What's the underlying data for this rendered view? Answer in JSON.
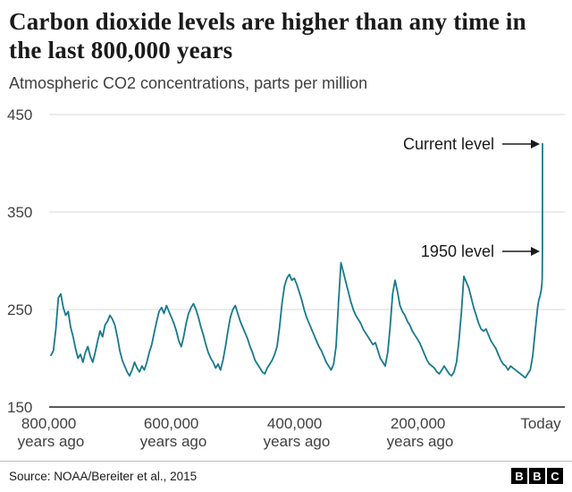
{
  "header": {
    "title": "Carbon dioxide levels are higher than any time in the last 800,000 years",
    "subtitle": "Atmospheric CO2 concentrations, parts per million"
  },
  "chart_data": {
    "type": "line",
    "title": "Carbon dioxide levels are higher than any time in the last 800,000 years",
    "xlabel": "years ago",
    "ylabel": "Atmospheric CO2 concentrations, parts per million",
    "ylim": [
      150,
      450
    ],
    "xlim_years_ago": [
      800000,
      0
    ],
    "grid": "horizontal",
    "legend_position": "none",
    "yticks": [
      450,
      350,
      250,
      150
    ],
    "xticks": [
      {
        "line1": "800,000",
        "line2": "years ago"
      },
      {
        "line1": "600,000",
        "line2": "years ago"
      },
      {
        "line1": "400,000",
        "line2": "years ago"
      },
      {
        "line1": "200,000",
        "line2": "years ago"
      },
      {
        "line1": "Today",
        "line2": ""
      }
    ],
    "annotations": [
      {
        "label": "Current level",
        "value_ppm": 420
      },
      {
        "label": "1950 level",
        "value_ppm": 310
      }
    ],
    "series": [
      {
        "name": "Atmospheric CO2 (ppm)",
        "color": "#17798C",
        "x_unit": "thousand years ago",
        "points": [
          [
            800,
            203
          ],
          [
            796,
            208
          ],
          [
            792,
            230
          ],
          [
            788,
            262
          ],
          [
            784,
            266
          ],
          [
            780,
            252
          ],
          [
            776,
            244
          ],
          [
            772,
            248
          ],
          [
            768,
            232
          ],
          [
            764,
            222
          ],
          [
            760,
            210
          ],
          [
            756,
            200
          ],
          [
            752,
            204
          ],
          [
            748,
            196
          ],
          [
            744,
            206
          ],
          [
            740,
            212
          ],
          [
            736,
            202
          ],
          [
            732,
            196
          ],
          [
            728,
            206
          ],
          [
            724,
            218
          ],
          [
            720,
            228
          ],
          [
            716,
            222
          ],
          [
            712,
            234
          ],
          [
            708,
            238
          ],
          [
            704,
            244
          ],
          [
            700,
            240
          ],
          [
            696,
            234
          ],
          [
            692,
            222
          ],
          [
            688,
            208
          ],
          [
            684,
            198
          ],
          [
            680,
            192
          ],
          [
            676,
            186
          ],
          [
            672,
            182
          ],
          [
            668,
            188
          ],
          [
            664,
            196
          ],
          [
            660,
            190
          ],
          [
            656,
            186
          ],
          [
            652,
            192
          ],
          [
            648,
            188
          ],
          [
            644,
            196
          ],
          [
            640,
            206
          ],
          [
            636,
            214
          ],
          [
            632,
            226
          ],
          [
            628,
            238
          ],
          [
            624,
            248
          ],
          [
            620,
            252
          ],
          [
            616,
            246
          ],
          [
            612,
            254
          ],
          [
            608,
            248
          ],
          [
            604,
            242
          ],
          [
            600,
            236
          ],
          [
            596,
            228
          ],
          [
            592,
            218
          ],
          [
            588,
            212
          ],
          [
            584,
            222
          ],
          [
            580,
            236
          ],
          [
            576,
            246
          ],
          [
            572,
            252
          ],
          [
            568,
            256
          ],
          [
            564,
            250
          ],
          [
            560,
            242
          ],
          [
            556,
            232
          ],
          [
            552,
            224
          ],
          [
            548,
            214
          ],
          [
            544,
            206
          ],
          [
            540,
            200
          ],
          [
            536,
            196
          ],
          [
            532,
            190
          ],
          [
            528,
            194
          ],
          [
            524,
            188
          ],
          [
            520,
            198
          ],
          [
            516,
            212
          ],
          [
            512,
            228
          ],
          [
            508,
            242
          ],
          [
            504,
            250
          ],
          [
            500,
            254
          ],
          [
            496,
            246
          ],
          [
            492,
            238
          ],
          [
            488,
            232
          ],
          [
            484,
            226
          ],
          [
            480,
            220
          ],
          [
            476,
            212
          ],
          [
            472,
            206
          ],
          [
            468,
            198
          ],
          [
            464,
            194
          ],
          [
            460,
            190
          ],
          [
            456,
            186
          ],
          [
            452,
            184
          ],
          [
            448,
            190
          ],
          [
            444,
            194
          ],
          [
            440,
            198
          ],
          [
            436,
            204
          ],
          [
            432,
            212
          ],
          [
            428,
            232
          ],
          [
            424,
            256
          ],
          [
            420,
            274
          ],
          [
            416,
            282
          ],
          [
            412,
            286
          ],
          [
            408,
            280
          ],
          [
            404,
            282
          ],
          [
            400,
            276
          ],
          [
            396,
            268
          ],
          [
            392,
            260
          ],
          [
            388,
            250
          ],
          [
            384,
            242
          ],
          [
            380,
            236
          ],
          [
            376,
            230
          ],
          [
            372,
            224
          ],
          [
            368,
            218
          ],
          [
            364,
            212
          ],
          [
            360,
            208
          ],
          [
            356,
            202
          ],
          [
            352,
            196
          ],
          [
            348,
            192
          ],
          [
            344,
            188
          ],
          [
            340,
            194
          ],
          [
            336,
            212
          ],
          [
            332,
            258
          ],
          [
            328,
            298
          ],
          [
            324,
            288
          ],
          [
            320,
            278
          ],
          [
            316,
            268
          ],
          [
            312,
            258
          ],
          [
            308,
            250
          ],
          [
            304,
            244
          ],
          [
            300,
            240
          ],
          [
            296,
            236
          ],
          [
            292,
            230
          ],
          [
            288,
            226
          ],
          [
            284,
            222
          ],
          [
            280,
            218
          ],
          [
            276,
            214
          ],
          [
            272,
            216
          ],
          [
            268,
            208
          ],
          [
            264,
            200
          ],
          [
            260,
            196
          ],
          [
            256,
            192
          ],
          [
            252,
            206
          ],
          [
            248,
            232
          ],
          [
            244,
            266
          ],
          [
            240,
            280
          ],
          [
            236,
            268
          ],
          [
            232,
            254
          ],
          [
            228,
            248
          ],
          [
            224,
            244
          ],
          [
            220,
            238
          ],
          [
            216,
            234
          ],
          [
            212,
            228
          ],
          [
            208,
            224
          ],
          [
            204,
            220
          ],
          [
            200,
            216
          ],
          [
            196,
            210
          ],
          [
            192,
            204
          ],
          [
            188,
            198
          ],
          [
            184,
            194
          ],
          [
            180,
            192
          ],
          [
            176,
            190
          ],
          [
            172,
            186
          ],
          [
            168,
            184
          ],
          [
            164,
            188
          ],
          [
            160,
            192
          ],
          [
            156,
            188
          ],
          [
            152,
            184
          ],
          [
            148,
            182
          ],
          [
            144,
            186
          ],
          [
            140,
            196
          ],
          [
            136,
            218
          ],
          [
            132,
            248
          ],
          [
            128,
            284
          ],
          [
            124,
            278
          ],
          [
            120,
            272
          ],
          [
            116,
            262
          ],
          [
            112,
            252
          ],
          [
            108,
            244
          ],
          [
            104,
            236
          ],
          [
            100,
            230
          ],
          [
            96,
            228
          ],
          [
            92,
            230
          ],
          [
            88,
            224
          ],
          [
            84,
            218
          ],
          [
            80,
            214
          ],
          [
            76,
            210
          ],
          [
            72,
            204
          ],
          [
            68,
            198
          ],
          [
            64,
            194
          ],
          [
            60,
            192
          ],
          [
            56,
            188
          ],
          [
            52,
            192
          ],
          [
            48,
            190
          ],
          [
            44,
            188
          ],
          [
            40,
            186
          ],
          [
            36,
            184
          ],
          [
            32,
            182
          ],
          [
            28,
            180
          ],
          [
            24,
            184
          ],
          [
            20,
            188
          ],
          [
            16,
            202
          ],
          [
            12,
            228
          ],
          [
            8,
            252
          ],
          [
            6,
            260
          ],
          [
            4,
            264
          ],
          [
            2,
            270
          ],
          [
            1,
            276
          ],
          [
            0.5,
            282
          ],
          [
            0.075,
            310
          ],
          [
            0.005,
            420
          ]
        ]
      }
    ]
  },
  "footer": {
    "source": "Source: NOAA/Bereiter et al., 2015",
    "logo_letters": [
      "B",
      "B",
      "C"
    ]
  }
}
